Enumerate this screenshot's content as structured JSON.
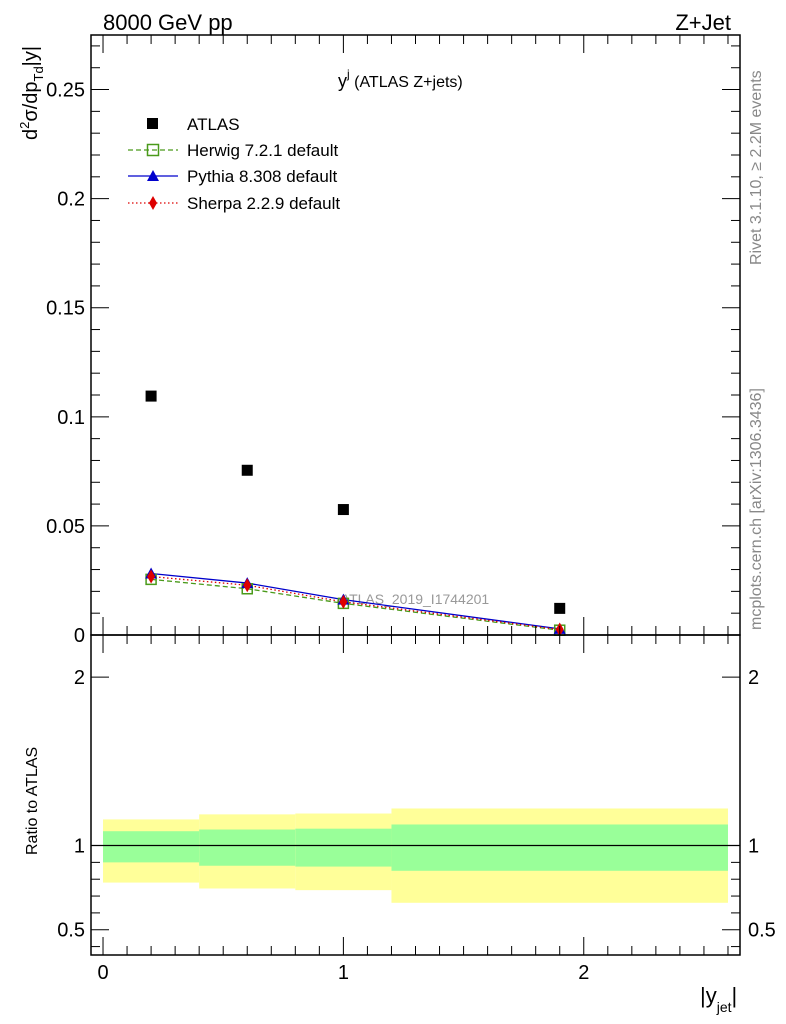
{
  "header": {
    "left": "8000 GeV pp",
    "right": "Z+Jet"
  },
  "side_labels": {
    "rivet": "Rivet 3.1.10, ≥ 2.2M events",
    "mcplots": "mcplots.cern.ch [arXiv:1306.3436]"
  },
  "chart_data": [
    {
      "type": "scatter",
      "panel": "main",
      "title_main": "y",
      "title_sup": "j",
      "title_rest": " (ATLAS Z+jets)",
      "ylabel": "d²σ/dp_Td|y|",
      "ylabel_parts": {
        "d": "d",
        "sup": "2",
        "mid": "σ/dp",
        "sub": "Td",
        "end": "|y|"
      },
      "ylim": [
        0,
        0.275
      ],
      "yticks": [
        0,
        0.05,
        0.1,
        0.15,
        0.2,
        0.25
      ],
      "ytick_labels": [
        "0",
        "0.05",
        "0.1",
        "0.15",
        "0.2",
        "0.25"
      ],
      "xlim": [
        -0.05,
        2.65
      ],
      "watermark": "ATLAS_2019_I1744201",
      "legend_position": "top-left",
      "series": [
        {
          "name": "ATLAS",
          "marker": "square",
          "color": "#000000",
          "x": [
            0.2,
            0.6,
            1.0,
            1.9
          ],
          "y": [
            0.1095,
            0.0755,
            0.0575,
            0.0122
          ]
        },
        {
          "name": "Herwig 7.2.1 default",
          "marker": "open-square",
          "color": "#4a9a1a",
          "linestyle": "dashed",
          "x": [
            0.2,
            0.6,
            1.0,
            1.9
          ],
          "y": [
            0.0255,
            0.0212,
            0.0145,
            0.0022
          ]
        },
        {
          "name": "Pythia 8.308 default",
          "marker": "triangle",
          "color": "#0000cc",
          "linestyle": "solid",
          "x": [
            0.2,
            0.6,
            1.0,
            1.9
          ],
          "y": [
            0.0282,
            0.0238,
            0.0162,
            0.0028
          ]
        },
        {
          "name": "Sherpa 2.2.9 default",
          "marker": "diamond",
          "color": "#dd0000",
          "linestyle": "dotted",
          "x": [
            0.2,
            0.6,
            1.0,
            1.9
          ],
          "y": [
            0.0268,
            0.0228,
            0.0152,
            0.0025
          ]
        }
      ]
    },
    {
      "type": "area",
      "panel": "ratio",
      "ylabel": "Ratio to ATLAS",
      "ylim": [
        0.35,
        2.25
      ],
      "yticks": [
        0.5,
        1,
        2
      ],
      "ytick_labels": [
        "0.5",
        "1",
        "2"
      ],
      "xlabel": "|y",
      "xlabel_sub": "jet",
      "xlabel_end": "|",
      "xlim": [
        -0.05,
        2.65
      ],
      "xticks": [
        0,
        1,
        2
      ],
      "xtick_labels": [
        "0",
        "1",
        "2"
      ],
      "reference_line": 1,
      "bins": [
        {
          "lo": 0.0,
          "hi": 0.4,
          "stat_lo": 0.9,
          "stat_hi": 1.085,
          "tot_lo": 0.78,
          "tot_hi": 1.155
        },
        {
          "lo": 0.4,
          "hi": 0.8,
          "stat_lo": 0.88,
          "stat_hi": 1.095,
          "tot_lo": 0.745,
          "tot_hi": 1.185
        },
        {
          "lo": 0.8,
          "hi": 1.2,
          "stat_lo": 0.875,
          "stat_hi": 1.1,
          "tot_lo": 0.735,
          "tot_hi": 1.19
        },
        {
          "lo": 1.2,
          "hi": 2.6,
          "stat_lo": 0.85,
          "stat_hi": 1.125,
          "tot_lo": 0.66,
          "tot_hi": 1.22
        }
      ],
      "colors": {
        "stat_band": "#99ff99",
        "total_band": "#ffff99"
      }
    }
  ]
}
